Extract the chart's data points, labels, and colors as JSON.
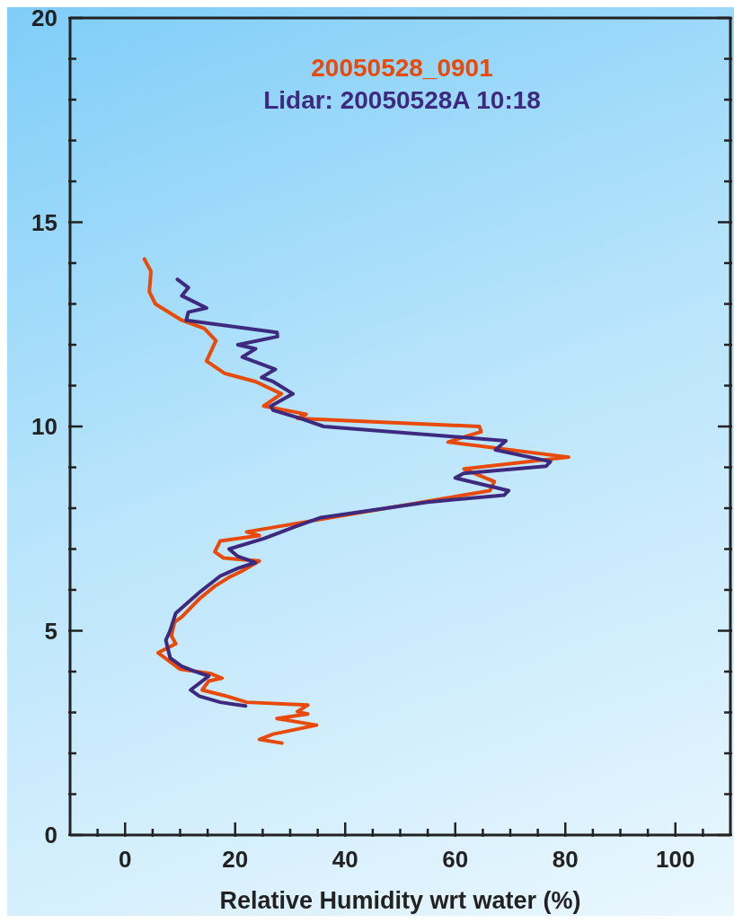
{
  "chart_data": {
    "type": "line",
    "xlabel": "Relative Humidity wrt water (%)",
    "legend": "top",
    "xlim": [
      -10,
      110
    ],
    "ylim": [
      0,
      20
    ],
    "xticks": [
      {
        "value": -5,
        "label": null
      },
      0,
      {
        "value": 5,
        "label": null
      },
      {
        "value": 10,
        "label": null
      },
      {
        "value": 15,
        "label": null
      },
      20,
      {
        "value": 25,
        "label": null
      },
      {
        "value": 30,
        "label": null
      },
      {
        "value": 35,
        "label": null
      },
      40,
      {
        "value": 45,
        "label": null
      },
      {
        "value": 50,
        "label": null
      },
      {
        "value": 55,
        "label": null
      },
      60,
      {
        "value": 65,
        "label": null
      },
      {
        "value": 70,
        "label": null
      },
      {
        "value": 75,
        "label": null
      },
      80,
      {
        "value": 85,
        "label": null
      },
      {
        "value": 90,
        "label": null
      },
      {
        "value": 95,
        "label": null
      },
      100,
      {
        "value": 105,
        "label": null
      }
    ],
    "yticks": [
      0,
      {
        "value": 1,
        "label": null
      },
      {
        "value": 2,
        "label": null
      },
      {
        "value": 3,
        "label": null
      },
      {
        "value": 4,
        "label": null
      },
      5,
      {
        "value": 6,
        "label": null
      },
      {
        "value": 7,
        "label": null
      },
      {
        "value": 8,
        "label": null
      },
      {
        "value": 9,
        "label": null
      },
      10,
      {
        "value": 11,
        "label": null
      },
      {
        "value": 12,
        "label": null
      },
      {
        "value": 13,
        "label": null
      },
      {
        "value": 14,
        "label": null
      },
      15,
      {
        "value": 16,
        "label": null
      },
      {
        "value": 17,
        "label": null
      },
      {
        "value": 18,
        "label": null
      },
      {
        "value": 19,
        "label": null
      },
      20
    ],
    "series": [
      {
        "name": "20050528_0901",
        "color": "#e84a0a",
        "x": [
          3.5,
          4.7,
          4.4,
          5.5,
          10.3,
          14.4,
          16.5,
          14.8,
          18.1,
          23.7,
          28.4,
          25.2,
          32.9,
          31.3,
          64.4,
          64.7,
          58.7,
          80.6,
          61.6,
          67.1,
          66.3,
          22.1,
          24.4,
          17.3,
          16.3,
          17.9,
          24.4,
          21.1,
          18.9,
          16.3,
          13.5,
          10.3,
          9.0,
          8.4,
          9.2,
          6.0,
          8.2,
          10.0,
          15.6,
          17.6,
          15.2,
          14.0,
          18.4,
          22.1,
          33.2,
          31.3,
          33.2,
          27.6,
          34.8,
          26.9,
          24.4,
          28.5
        ],
        "values": [
          14.1,
          13.8,
          13.3,
          13.0,
          12.6,
          12.4,
          12.1,
          11.6,
          11.3,
          11.1,
          10.8,
          10.5,
          10.3,
          10.2,
          10.0,
          9.87,
          9.62,
          9.25,
          8.96,
          8.65,
          8.43,
          7.42,
          7.33,
          7.2,
          6.93,
          6.78,
          6.71,
          6.45,
          6.31,
          6.09,
          5.78,
          5.34,
          5.21,
          4.88,
          4.68,
          4.46,
          4.24,
          4.06,
          3.95,
          3.84,
          3.77,
          3.55,
          3.4,
          3.25,
          3.18,
          3.02,
          2.96,
          2.85,
          2.69,
          2.47,
          2.34,
          2.25
        ]
      },
      {
        "name": "Lidar: 20050528A 10:18",
        "color": "#3d2a7f",
        "x": [
          9.5,
          11.5,
          10.3,
          14.8,
          11.5,
          11.1,
          27.6,
          27.7,
          20.5,
          23.7,
          21.3,
          27.3,
          24.8,
          26.9,
          30.5,
          26.5,
          26.9,
          31.8,
          36.1,
          69.2,
          67.3,
          77.3,
          76.5,
          61.5,
          60.0,
          69.7,
          68.9,
          55.0,
          35.6,
          31.0,
          25.3,
          18.9,
          20.5,
          23.7,
          20.5,
          17.3,
          13.5,
          9.2,
          8.2,
          7.4,
          8.2,
          10.3,
          12.4,
          15.2,
          11.9,
          13.5,
          17.3,
          21.9
        ],
        "values": [
          13.6,
          13.4,
          13.2,
          12.9,
          12.8,
          12.6,
          12.3,
          12.2,
          12.0,
          11.9,
          11.7,
          11.4,
          11.2,
          11.1,
          10.8,
          10.5,
          10.4,
          10.2,
          10.0,
          9.65,
          9.43,
          9.14,
          9.03,
          8.85,
          8.74,
          8.43,
          8.32,
          8.15,
          7.77,
          7.55,
          7.26,
          7.0,
          6.82,
          6.67,
          6.53,
          6.34,
          5.94,
          5.43,
          5.01,
          4.77,
          4.33,
          4.13,
          4.02,
          3.89,
          3.55,
          3.4,
          3.25,
          3.16
        ]
      }
    ]
  }
}
